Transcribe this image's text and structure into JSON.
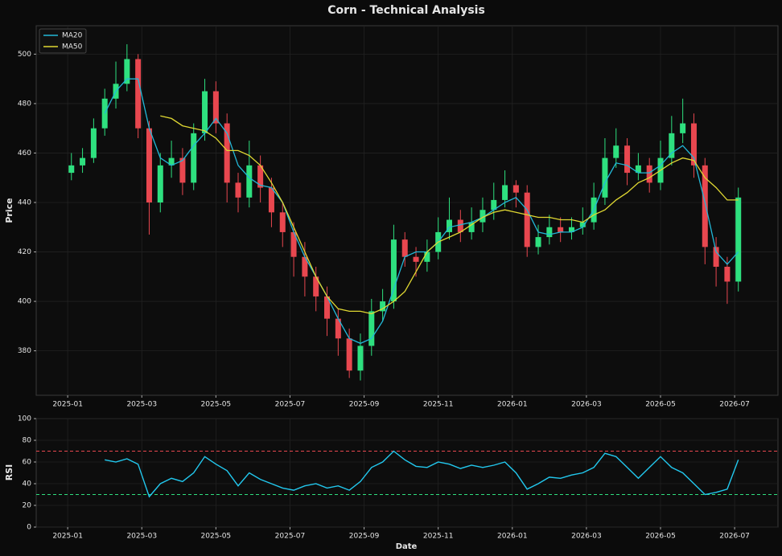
{
  "chart_data": [
    {
      "type": "candlestick",
      "title": "Corn - Technical Analysis",
      "ylabel": "Price",
      "x": [
        0.1,
        0.4,
        0.7,
        1.0,
        1.3,
        1.6,
        1.9,
        2.2,
        2.5,
        2.8,
        3.1,
        3.4,
        3.7,
        4.0,
        4.3,
        4.6,
        4.9,
        5.2,
        5.5,
        5.8,
        6.1,
        6.4,
        6.7,
        7.0,
        7.3,
        7.6,
        7.9,
        8.2,
        8.5,
        8.8,
        9.1,
        9.4,
        9.7,
        10.0,
        10.3,
        10.6,
        10.9,
        11.2,
        11.5,
        11.8,
        12.1,
        12.4,
        12.7,
        13.0,
        13.3,
        13.6,
        13.9,
        14.2,
        14.5,
        14.8,
        15.1,
        15.4,
        15.7,
        16.0,
        16.3,
        16.6,
        16.9,
        17.2,
        17.5,
        17.8,
        18.1
      ],
      "open": [
        452,
        455,
        458,
        470,
        482,
        488,
        498,
        470,
        440,
        455,
        458,
        448,
        468,
        485,
        472,
        448,
        442,
        455,
        446,
        436,
        428,
        418,
        410,
        402,
        393,
        385,
        372,
        382,
        396,
        400,
        425,
        418,
        416,
        420,
        428,
        433,
        428,
        432,
        437,
        441,
        447,
        444,
        422,
        426,
        430,
        428,
        430,
        432,
        442,
        458,
        463,
        452,
        455,
        448,
        458,
        468,
        472,
        455,
        422,
        414,
        408
      ],
      "high": [
        460,
        462,
        474,
        486,
        497,
        504,
        500,
        473,
        460,
        465,
        462,
        472,
        490,
        489,
        476,
        452,
        465,
        459,
        450,
        440,
        432,
        424,
        414,
        406,
        397,
        389,
        387,
        401,
        405,
        431,
        428,
        422,
        425,
        434,
        442,
        437,
        438,
        442,
        448,
        453,
        449,
        447,
        431,
        435,
        434,
        434,
        438,
        448,
        466,
        470,
        466,
        460,
        458,
        465,
        475,
        482,
        476,
        458,
        426,
        418,
        446
      ],
      "low": [
        449,
        452,
        456,
        467,
        478,
        485,
        466,
        427,
        436,
        450,
        443,
        445,
        465,
        468,
        440,
        436,
        438,
        440,
        430,
        422,
        410,
        402,
        396,
        386,
        378,
        369,
        368,
        378,
        392,
        397,
        414,
        410,
        412,
        417,
        425,
        424,
        425,
        428,
        433,
        438,
        438,
        418,
        419,
        423,
        424,
        425,
        427,
        429,
        439,
        454,
        447,
        449,
        444,
        445,
        455,
        464,
        450,
        415,
        406,
        399,
        404
      ],
      "close": [
        455,
        458,
        470,
        482,
        488,
        498,
        470,
        440,
        455,
        458,
        448,
        468,
        485,
        472,
        448,
        442,
        455,
        446,
        436,
        428,
        418,
        410,
        402,
        393,
        385,
        372,
        382,
        396,
        400,
        425,
        418,
        416,
        420,
        428,
        433,
        428,
        432,
        437,
        441,
        447,
        444,
        422,
        426,
        430,
        428,
        430,
        432,
        442,
        458,
        463,
        452,
        455,
        448,
        458,
        468,
        472,
        455,
        422,
        414,
        408,
        442
      ],
      "up_color": "#2ee07f",
      "down_color": "#e8474f",
      "series": [
        {
          "name": "MA20",
          "color": "#22b8d8",
          "values": [
            null,
            null,
            null,
            476,
            485,
            490,
            490,
            470,
            458,
            455,
            457,
            463,
            468,
            474,
            468,
            455,
            450,
            447,
            446,
            440,
            428,
            418,
            410,
            402,
            393,
            385,
            383,
            385,
            392,
            405,
            418,
            420,
            420,
            424,
            430,
            431,
            432,
            434,
            437,
            440,
            442,
            437,
            428,
            427,
            428,
            428,
            430,
            437,
            448,
            456,
            455,
            452,
            452,
            455,
            460,
            463,
            458,
            440,
            420,
            415,
            420
          ]
        },
        {
          "name": "MA50",
          "color": "#e0d832",
          "values": [
            null,
            null,
            null,
            null,
            null,
            null,
            null,
            null,
            475,
            474,
            471,
            470,
            469,
            466,
            461,
            461,
            459,
            455,
            448,
            440,
            430,
            420,
            410,
            402,
            397,
            396,
            396,
            395,
            397,
            400,
            404,
            412,
            420,
            424,
            426,
            428,
            431,
            434,
            436,
            437,
            436,
            435,
            434,
            434,
            433,
            433,
            432,
            435,
            437,
            441,
            444,
            448,
            450,
            453,
            456,
            458,
            457,
            450,
            446,
            441,
            441
          ]
        }
      ],
      "xlim": [
        -0.85,
        19.17
      ],
      "ylim": [
        362,
        511.5
      ],
      "xticks": [
        {
          "value": 0,
          "label": "2025-01"
        },
        {
          "value": 2,
          "label": "2025-03"
        },
        {
          "value": 4,
          "label": "2025-05"
        },
        {
          "value": 6,
          "label": "2025-07"
        },
        {
          "value": 8,
          "label": "2025-09"
        },
        {
          "value": 10,
          "label": "2025-11"
        },
        {
          "value": 12,
          "label": "2026-01"
        },
        {
          "value": 14,
          "label": "2026-03"
        },
        {
          "value": 16,
          "label": "2026-05"
        },
        {
          "value": 18,
          "label": "2026-07"
        }
      ],
      "yticks": [
        380,
        400,
        420,
        440,
        460,
        480,
        500
      ],
      "grid": true,
      "legend": "upper left"
    },
    {
      "type": "line",
      "ylabel": "RSI",
      "xlabel": "Date",
      "x": [
        0.1,
        0.4,
        0.7,
        1.0,
        1.3,
        1.6,
        1.9,
        2.2,
        2.5,
        2.8,
        3.1,
        3.4,
        3.7,
        4.0,
        4.3,
        4.6,
        4.9,
        5.2,
        5.5,
        5.8,
        6.1,
        6.4,
        6.7,
        7.0,
        7.3,
        7.6,
        7.9,
        8.2,
        8.5,
        8.8,
        9.1,
        9.4,
        9.7,
        10.0,
        10.3,
        10.6,
        10.9,
        11.2,
        11.5,
        11.8,
        12.1,
        12.4,
        12.7,
        13.0,
        13.3,
        13.6,
        13.9,
        14.2,
        14.5,
        14.8,
        15.1,
        15.4,
        15.7,
        16.0,
        16.3,
        16.6,
        16.9,
        17.2,
        17.5,
        17.8,
        18.1
      ],
      "values": [
        null,
        null,
        null,
        62,
        60,
        63,
        58,
        28,
        40,
        45,
        42,
        50,
        65,
        58,
        52,
        38,
        50,
        44,
        40,
        36,
        34,
        38,
        40,
        36,
        38,
        34,
        42,
        55,
        60,
        70,
        62,
        56,
        55,
        60,
        58,
        54,
        57,
        55,
        57,
        60,
        50,
        35,
        40,
        46,
        45,
        48,
        50,
        55,
        68,
        65,
        55,
        45,
        55,
        65,
        55,
        50,
        40,
        30,
        32,
        35,
        62
      ],
      "color": "#22c8ee",
      "hlines": [
        {
          "value": 70,
          "color": "#e8474f"
        },
        {
          "value": 30,
          "color": "#2ee07f"
        }
      ],
      "xlim": [
        -0.85,
        19.17
      ],
      "ylim": [
        0,
        100
      ],
      "xticks": [
        {
          "value": 0,
          "label": "2025-01"
        },
        {
          "value": 2,
          "label": "2025-03"
        },
        {
          "value": 4,
          "label": "2025-05"
        },
        {
          "value": 6,
          "label": "2025-07"
        },
        {
          "value": 8,
          "label": "2025-09"
        },
        {
          "value": 10,
          "label": "2025-11"
        },
        {
          "value": 12,
          "label": "2026-01"
        },
        {
          "value": 14,
          "label": "2026-03"
        },
        {
          "value": 16,
          "label": "2026-05"
        },
        {
          "value": 18,
          "label": "2026-07"
        }
      ],
      "yticks": [
        0,
        20,
        40,
        60,
        80,
        100
      ],
      "grid": true
    }
  ]
}
